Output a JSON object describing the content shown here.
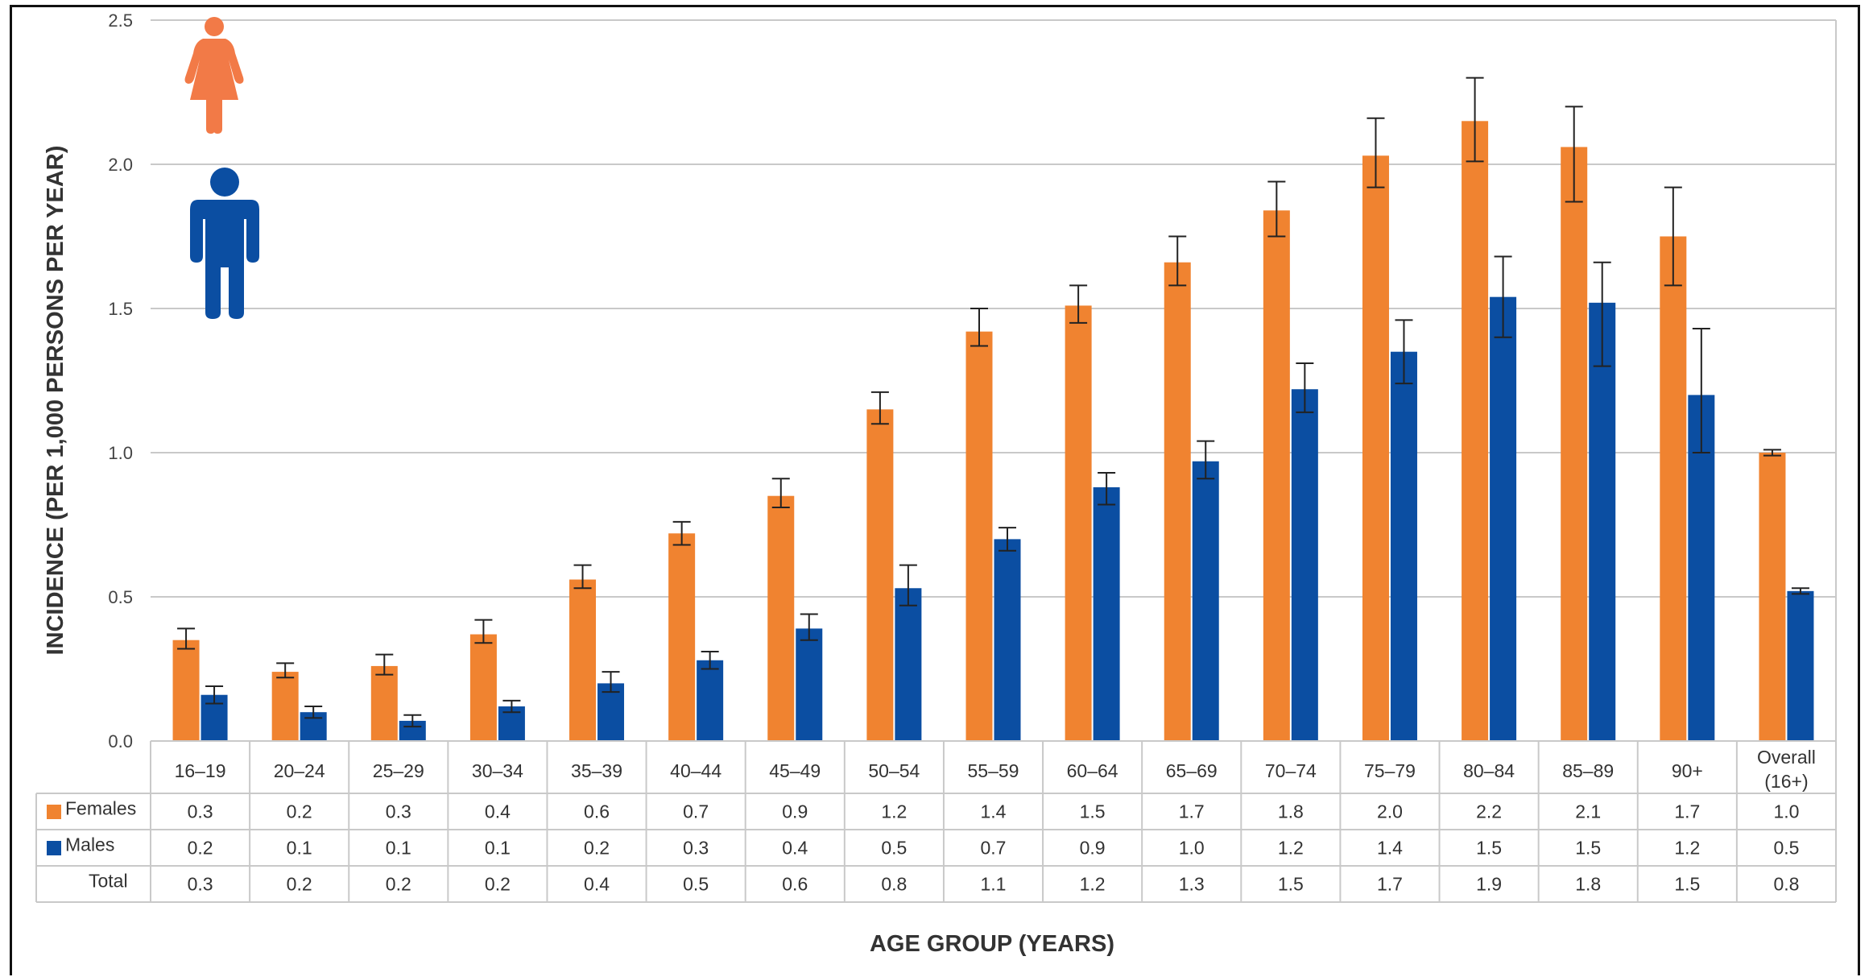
{
  "chart_data": {
    "type": "bar",
    "categories": [
      "16–19",
      "20–24",
      "25–29",
      "30–34",
      "35–39",
      "40–44",
      "45–49",
      "50–54",
      "55–59",
      "60–64",
      "65–69",
      "70–74",
      "75–79",
      "80–84",
      "85–89",
      "90+",
      "Overall (16+)"
    ],
    "category_lines": [
      [
        "16–19"
      ],
      [
        "20–24"
      ],
      [
        "25–29"
      ],
      [
        "30–34"
      ],
      [
        "35–39"
      ],
      [
        "40–44"
      ],
      [
        "45–49"
      ],
      [
        "50–54"
      ],
      [
        "55–59"
      ],
      [
        "60–64"
      ],
      [
        "65–69"
      ],
      [
        "70–74"
      ],
      [
        "75–79"
      ],
      [
        "80–84"
      ],
      [
        "85–89"
      ],
      [
        "90+"
      ],
      [
        "Overall",
        "(16+)"
      ]
    ],
    "series": [
      {
        "name": "Females",
        "color": "#f08330",
        "values": [
          0.35,
          0.24,
          0.26,
          0.37,
          0.56,
          0.72,
          0.85,
          1.15,
          1.42,
          1.51,
          1.66,
          1.84,
          2.03,
          2.15,
          2.06,
          1.75,
          1.0
        ],
        "err_low": [
          0.32,
          0.22,
          0.23,
          0.34,
          0.53,
          0.68,
          0.81,
          1.1,
          1.37,
          1.45,
          1.58,
          1.75,
          1.92,
          2.01,
          1.87,
          1.58,
          0.99
        ],
        "err_high": [
          0.39,
          0.27,
          0.3,
          0.42,
          0.61,
          0.76,
          0.91,
          1.21,
          1.5,
          1.58,
          1.75,
          1.94,
          2.16,
          2.3,
          2.2,
          1.92,
          1.01
        ]
      },
      {
        "name": "Males",
        "color": "#0b4ea2",
        "values": [
          0.16,
          0.1,
          0.07,
          0.12,
          0.2,
          0.28,
          0.39,
          0.53,
          0.7,
          0.88,
          0.97,
          1.22,
          1.35,
          1.54,
          1.52,
          1.2,
          0.52
        ],
        "err_low": [
          0.13,
          0.08,
          0.05,
          0.1,
          0.17,
          0.25,
          0.35,
          0.47,
          0.66,
          0.82,
          0.91,
          1.14,
          1.24,
          1.4,
          1.3,
          1.0,
          0.51
        ],
        "err_high": [
          0.19,
          0.12,
          0.09,
          0.14,
          0.24,
          0.31,
          0.44,
          0.61,
          0.74,
          0.93,
          1.04,
          1.31,
          1.46,
          1.68,
          1.66,
          1.43,
          0.53
        ]
      }
    ],
    "ylim": [
      0,
      2.5
    ],
    "yticks": [
      "0.0",
      "0.5",
      "1.0",
      "1.5",
      "2.0",
      "2.5"
    ],
    "ylabel": "INCIDENCE (PER 1,000 PERSONS PER YEAR)",
    "xlabel": "AGE GROUP (YEARS)",
    "grid": true,
    "table": {
      "rows": [
        {
          "label": "Females",
          "swatch": "#f08330",
          "values": [
            "0.3",
            "0.2",
            "0.3",
            "0.4",
            "0.6",
            "0.7",
            "0.9",
            "1.2",
            "1.4",
            "1.5",
            "1.7",
            "1.8",
            "2.0",
            "2.2",
            "2.1",
            "1.7",
            "1.0"
          ]
        },
        {
          "label": "Males",
          "swatch": "#0b4ea2",
          "values": [
            "0.2",
            "0.1",
            "0.1",
            "0.1",
            "0.2",
            "0.3",
            "0.4",
            "0.5",
            "0.7",
            "0.9",
            "1.0",
            "1.2",
            "1.4",
            "1.5",
            "1.5",
            "1.2",
            "0.5"
          ]
        },
        {
          "label": "Total",
          "swatch": "",
          "values": [
            "0.3",
            "0.2",
            "0.2",
            "0.2",
            "0.4",
            "0.5",
            "0.6",
            "0.8",
            "1.1",
            "1.2",
            "1.3",
            "1.5",
            "1.7",
            "1.9",
            "1.8",
            "1.5",
            "0.8"
          ]
        }
      ]
    }
  },
  "icons": {
    "female": {
      "name": "female-figure-icon",
      "color": "#f27a47"
    },
    "male": {
      "name": "male-figure-icon",
      "color": "#0b4ea2"
    }
  }
}
